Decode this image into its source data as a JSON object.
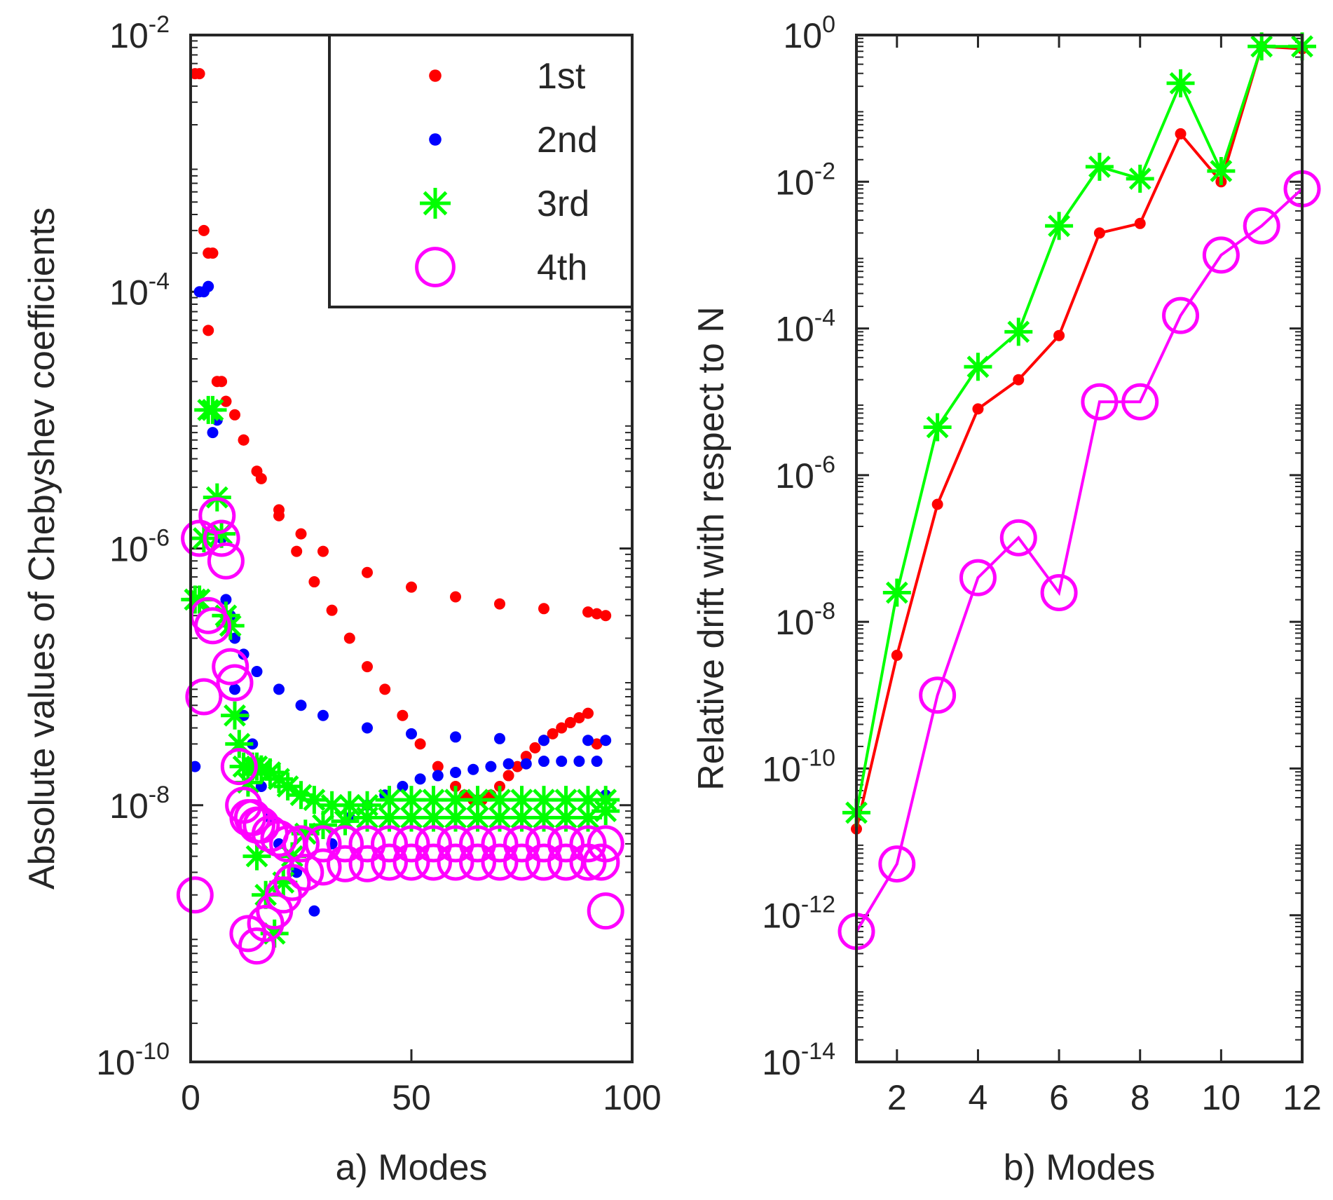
{
  "chart_data": [
    {
      "type": "scatter",
      "panel": "a",
      "xlabel": "a) Modes",
      "ylabel": "Absolute values of Chebyshev coefficients",
      "xlim": [
        0,
        100
      ],
      "ylim_exp": [
        -10,
        -2
      ],
      "y_scale": "log",
      "xticks": [
        0,
        50,
        100
      ],
      "yticks_exp": [
        -10,
        -8,
        -6,
        -4,
        -2
      ],
      "grid": false,
      "legend": {
        "position": "top-right",
        "labels": [
          "1st",
          "2nd",
          "3rd",
          "4th"
        ]
      },
      "series": [
        {
          "name": "1st",
          "color": "#ff0000",
          "marker": "dot",
          "x": [
            1,
            2,
            3,
            4,
            5,
            6,
            7,
            8,
            10,
            12,
            15,
            20,
            25,
            30,
            40,
            50,
            60,
            70,
            80,
            90,
            92,
            94,
            4,
            8,
            12,
            16,
            20,
            24,
            28,
            32,
            36,
            40,
            44,
            48,
            52,
            56,
            60,
            62,
            64,
            66,
            68,
            70,
            72,
            74,
            76,
            78,
            80,
            82,
            84,
            86,
            88,
            90,
            92
          ],
          "y": [
            0.005,
            0.005,
            0.0003,
            0.0002,
            0.0002,
            2e-05,
            2e-05,
            1.4e-05,
            1.1e-05,
            7e-06,
            4e-06,
            2e-06,
            1.3e-06,
            9.5e-07,
            6.5e-07,
            5e-07,
            4.2e-07,
            3.7e-07,
            3.4e-07,
            3.2e-07,
            3.1e-07,
            3e-07,
            5e-05,
            1.4e-05,
            7e-06,
            3.5e-06,
            1.8e-06,
            9.5e-07,
            5.5e-07,
            3.3e-07,
            2e-07,
            1.2e-07,
            8e-08,
            5e-08,
            3e-08,
            2e-08,
            1.4e-08,
            1.2e-08,
            1.1e-08,
            1.1e-08,
            1.2e-08,
            1.4e-08,
            1.7e-08,
            2e-08,
            2.4e-08,
            2.8e-08,
            3.2e-08,
            3.6e-08,
            4e-08,
            4.4e-08,
            4.8e-08,
            5.2e-08,
            3e-08
          ]
        },
        {
          "name": "2nd",
          "color": "#0000ff",
          "marker": "dot",
          "x": [
            1,
            2,
            3,
            4,
            5,
            6,
            7,
            8,
            9,
            10,
            12,
            15,
            20,
            25,
            30,
            40,
            50,
            60,
            70,
            80,
            90,
            94,
            10,
            12,
            14,
            16,
            18,
            20,
            24,
            28,
            32,
            36,
            40,
            44,
            48,
            52,
            56,
            60,
            64,
            68,
            72,
            76,
            80,
            84,
            88,
            92,
            94
          ],
          "y": [
            2e-08,
            0.0001,
            0.0001,
            0.00011,
            8e-06,
            1e-05,
            1.2e-06,
            4e-07,
            3e-07,
            2e-07,
            1.5e-07,
            1.1e-07,
            8e-08,
            6e-08,
            5e-08,
            4e-08,
            3.6e-08,
            3.4e-08,
            3.3e-08,
            3.2e-08,
            3.2e-08,
            3.2e-08,
            8e-08,
            5e-08,
            3e-08,
            1.4e-08,
            8e-09,
            5e-09,
            3e-09,
            1.5e-09,
            5e-09,
            8e-09,
            1e-08,
            1.2e-08,
            1.4e-08,
            1.6e-08,
            1.7e-08,
            1.8e-08,
            1.9e-08,
            2e-08,
            2.1e-08,
            2.1e-08,
            2.2e-08,
            2.2e-08,
            2.2e-08,
            2.2e-08,
            1.2e-08
          ]
        },
        {
          "name": "3rd",
          "color": "#00ff00",
          "marker": "star",
          "x": [
            1,
            2,
            3,
            4,
            5,
            6,
            7,
            8,
            9,
            10,
            11,
            12,
            13,
            14,
            15,
            16,
            18,
            20,
            22,
            25,
            28,
            32,
            36,
            40,
            45,
            50,
            55,
            60,
            65,
            70,
            75,
            80,
            85,
            90,
            94,
            15,
            17,
            19,
            21,
            23,
            26,
            30,
            35,
            40,
            45,
            50,
            55,
            60,
            65,
            70,
            75,
            80,
            85,
            90,
            94
          ],
          "y": [
            4e-07,
            4e-07,
            1.2e-06,
            1.2e-05,
            1.2e-05,
            2.5e-06,
            1.3e-06,
            3e-07,
            2.5e-07,
            5e-08,
            3e-08,
            2e-08,
            1.5e-08,
            2e-08,
            2e-08,
            1.9e-08,
            1.8e-08,
            1.6e-08,
            1.4e-08,
            1.2e-08,
            1.1e-08,
            1e-08,
            1e-08,
            1e-08,
            1.1e-08,
            1.1e-08,
            1.1e-08,
            1.1e-08,
            1.1e-08,
            1.1e-08,
            1.1e-08,
            1.1e-08,
            1.1e-08,
            1.1e-08,
            1.1e-08,
            4e-09,
            2e-09,
            1e-09,
            2.5e-09,
            4e-09,
            6e-09,
            7e-09,
            7.5e-09,
            8e-09,
            8e-09,
            8e-09,
            8e-09,
            8e-09,
            8e-09,
            8e-09,
            8e-09,
            8e-09,
            8e-09,
            8e-09,
            9e-09
          ]
        },
        {
          "name": "4th",
          "color": "#ff00ff",
          "marker": "circle",
          "x": [
            1,
            2,
            3,
            4,
            5,
            6,
            7,
            8,
            9,
            10,
            11,
            12,
            13,
            14,
            15,
            16,
            18,
            20,
            22,
            25,
            30,
            35,
            40,
            45,
            50,
            55,
            60,
            65,
            70,
            75,
            80,
            85,
            90,
            94,
            13,
            15,
            17,
            19,
            21,
            23,
            26,
            30,
            35,
            40,
            45,
            50,
            55,
            60,
            65,
            70,
            75,
            80,
            85,
            90,
            93,
            94
          ],
          "y": [
            2e-09,
            1.2e-06,
            7e-08,
            3e-07,
            2.5e-07,
            1.8e-06,
            1.2e-06,
            8e-07,
            1.2e-07,
            9e-08,
            2e-08,
            1e-08,
            8e-09,
            8e-09,
            7e-09,
            7e-09,
            6e-09,
            5.5e-09,
            5e-09,
            5e-09,
            5e-09,
            5e-09,
            5e-09,
            5e-09,
            5e-09,
            5e-09,
            5e-09,
            5e-09,
            5e-09,
            5e-09,
            5e-09,
            5e-09,
            5e-09,
            5e-09,
            1e-09,
            8e-10,
            1.2e-09,
            1.5e-09,
            2e-09,
            2.5e-09,
            3e-09,
            3.3e-09,
            3.5e-09,
            3.5e-09,
            3.6e-09,
            3.6e-09,
            3.6e-09,
            3.6e-09,
            3.6e-09,
            3.6e-09,
            3.6e-09,
            3.6e-09,
            3.6e-09,
            3.6e-09,
            3.6e-09,
            1.5e-09
          ]
        }
      ]
    },
    {
      "type": "line",
      "panel": "b",
      "xlabel": "b) Modes",
      "ylabel": "Relative drift with respect to N",
      "xlim": [
        1,
        12
      ],
      "ylim_exp": [
        -14,
        0
      ],
      "y_scale": "log",
      "xticks": [
        2,
        4,
        6,
        8,
        10,
        12
      ],
      "yticks_exp": [
        -14,
        -12,
        -10,
        -8,
        -6,
        -4,
        -2,
        0
      ],
      "grid": false,
      "series": [
        {
          "name": "1st",
          "color": "#ff0000",
          "marker": "dot",
          "x": [
            1,
            2,
            3,
            4,
            5,
            6,
            7,
            8,
            9,
            10,
            11,
            12
          ],
          "y": [
            1.5e-11,
            3.5e-09,
            4e-07,
            8e-06,
            2e-05,
            8e-05,
            0.002,
            0.0027,
            0.045,
            0.01,
            0.7,
            0.65
          ]
        },
        {
          "name": "3rd",
          "color": "#00ff00",
          "marker": "star",
          "x": [
            1,
            2,
            3,
            4,
            5,
            6,
            7,
            8,
            9,
            10,
            11,
            12
          ],
          "y": [
            2.5e-11,
            2.5e-08,
            4.5e-06,
            3e-05,
            9e-05,
            0.0025,
            0.016,
            0.011,
            0.22,
            0.014,
            0.7,
            0.7
          ]
        },
        {
          "name": "4th",
          "color": "#ff00ff",
          "marker": "circle",
          "x": [
            1,
            2,
            3,
            4,
            5,
            6,
            7,
            8,
            9,
            10,
            11,
            12
          ],
          "y": [
            6e-13,
            5e-12,
            1e-09,
            4e-08,
            1.4e-07,
            2.5e-08,
            1e-05,
            1e-05,
            0.00015,
            0.001,
            0.0025,
            0.008
          ]
        }
      ]
    }
  ]
}
